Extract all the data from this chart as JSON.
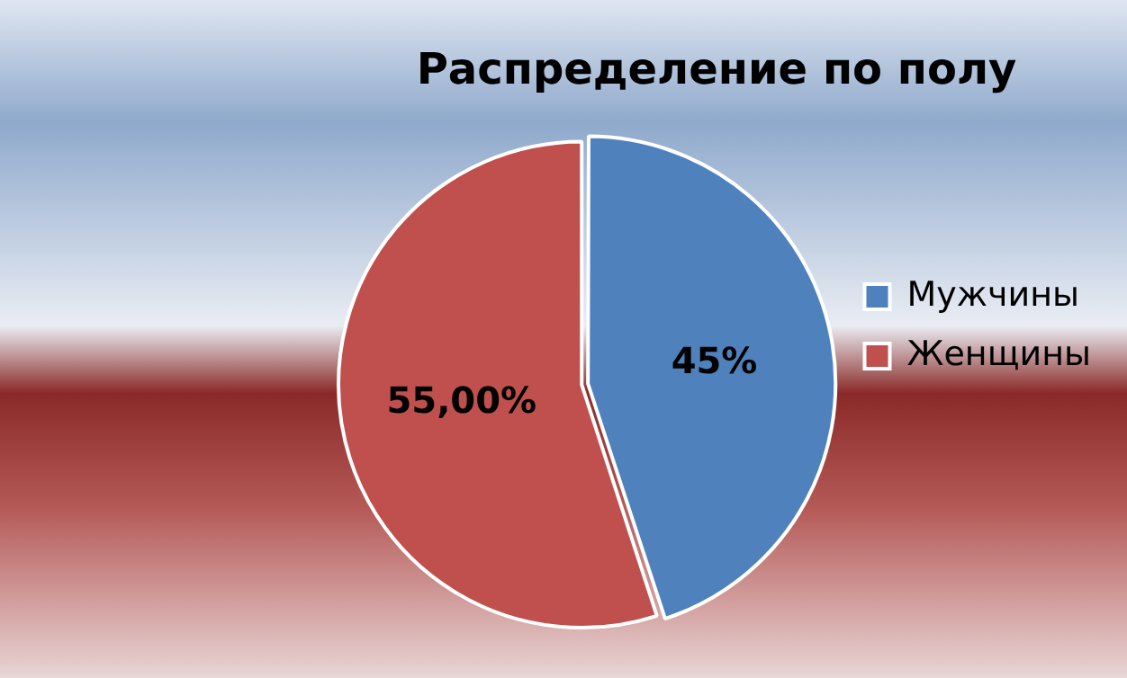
{
  "chart_data": {
    "type": "pie",
    "title": "Распределение по полу",
    "categories": [
      "Мужчины",
      "Женщины"
    ],
    "values": [
      45,
      55
    ],
    "value_labels": [
      "45%",
      "55,00%"
    ],
    "colors": [
      "#4f81bd",
      "#c0504d"
    ],
    "legend": "right"
  }
}
